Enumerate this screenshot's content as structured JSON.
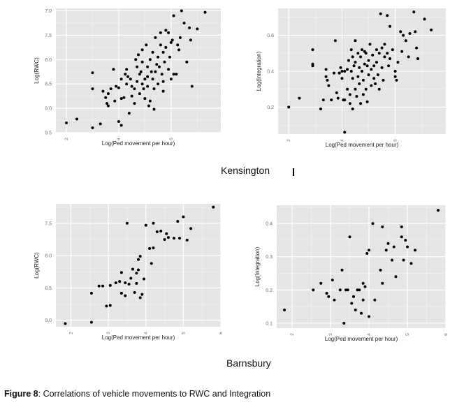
{
  "group_titles": [
    "Kensington",
    "Barnsbury"
  ],
  "caption": {
    "label": "Figure 8",
    "text": ": Correlations of vehicle movements to RWC and Integration"
  },
  "colors": {
    "panel_bg": "#e5e5e5",
    "grid": "#ffffff",
    "point": "#000000",
    "tick_text": "#6e6e6e"
  },
  "chart_data": [
    {
      "type": "scatter",
      "group": "Kensington",
      "xlabel": "Log(Ped movement per hour)",
      "ylabel": "Log(RWC)",
      "xlim": [
        1.6,
        7.9
      ],
      "ylim": [
        6.95,
        9.5
      ],
      "y_reversed": true,
      "xticks": [
        2,
        4,
        6
      ],
      "yticks": [
        7.0,
        7.5,
        8.0,
        8.5,
        9.0,
        9.5
      ],
      "ytick_labels": [
        "7.0",
        "7.5",
        "8.0",
        "8.5",
        "9.0",
        "9.5"
      ],
      "grid": true,
      "points": [
        [
          2.0,
          9.3
        ],
        [
          2.4,
          9.22
        ],
        [
          3.0,
          8.27
        ],
        [
          3.0,
          8.6
        ],
        [
          3.0,
          9.4
        ],
        [
          3.3,
          9.32
        ],
        [
          3.4,
          8.65
        ],
        [
          3.5,
          8.78
        ],
        [
          3.55,
          8.9
        ],
        [
          3.6,
          8.95
        ],
        [
          3.6,
          8.7
        ],
        [
          3.7,
          8.6
        ],
        [
          3.8,
          8.2
        ],
        [
          3.85,
          8.85
        ],
        [
          3.9,
          8.55
        ],
        [
          4.0,
          9.27
        ],
        [
          4.1,
          9.35
        ],
        [
          4.0,
          8.58
        ],
        [
          4.1,
          8.4
        ],
        [
          4.1,
          8.8
        ],
        [
          4.2,
          8.78
        ],
        [
          4.25,
          8.3
        ],
        [
          4.3,
          8.2
        ],
        [
          4.3,
          8.5
        ],
        [
          4.35,
          8.35
        ],
        [
          4.4,
          9.1
        ],
        [
          4.45,
          8.4
        ],
        [
          4.5,
          8.55
        ],
        [
          4.5,
          8.75
        ],
        [
          4.6,
          8.9
        ],
        [
          4.6,
          8.6
        ],
        [
          4.65,
          8.0
        ],
        [
          4.7,
          8.15
        ],
        [
          4.7,
          8.45
        ],
        [
          4.75,
          7.9
        ],
        [
          4.8,
          8.3
        ],
        [
          4.8,
          8.7
        ],
        [
          4.85,
          8.25
        ],
        [
          4.9,
          7.8
        ],
        [
          4.9,
          8.05
        ],
        [
          4.9,
          8.5
        ],
        [
          4.95,
          8.6
        ],
        [
          5.0,
          8.4
        ],
        [
          5.0,
          8.8
        ],
        [
          5.05,
          7.7
        ],
        [
          5.1,
          8.15
        ],
        [
          5.1,
          8.35
        ],
        [
          5.1,
          8.55
        ],
        [
          5.15,
          8.95
        ],
        [
          5.2,
          8.0
        ],
        [
          5.2,
          8.85
        ],
        [
          5.25,
          8.25
        ],
        [
          5.3,
          8.4
        ],
        [
          5.3,
          7.85
        ],
        [
          5.35,
          9.02
        ],
        [
          5.35,
          8.6
        ],
        [
          5.4,
          8.25
        ],
        [
          5.4,
          7.55
        ],
        [
          5.45,
          8.1
        ],
        [
          5.5,
          8.5
        ],
        [
          5.5,
          7.95
        ],
        [
          5.55,
          8.15
        ],
        [
          5.6,
          7.7
        ],
        [
          5.6,
          7.45
        ],
        [
          5.65,
          8.3
        ],
        [
          5.7,
          8.45
        ],
        [
          5.7,
          7.85
        ],
        [
          5.7,
          8.65
        ],
        [
          5.75,
          8.05
        ],
        [
          5.8,
          7.75
        ],
        [
          5.8,
          7.4
        ],
        [
          5.9,
          7.45
        ],
        [
          5.9,
          8.2
        ],
        [
          5.95,
          7.95
        ],
        [
          6.0,
          8.4
        ],
        [
          6.0,
          7.65
        ],
        [
          6.05,
          7.6
        ],
        [
          6.1,
          7.1
        ],
        [
          6.1,
          8.3
        ],
        [
          6.2,
          8.3
        ],
        [
          6.25,
          7.7
        ],
        [
          6.3,
          7.8
        ],
        [
          6.35,
          7.55
        ],
        [
          6.4,
          7.0
        ],
        [
          6.5,
          7.25
        ],
        [
          6.6,
          8.05
        ],
        [
          6.7,
          7.35
        ],
        [
          6.75,
          7.6
        ],
        [
          6.8,
          8.55
        ],
        [
          7.0,
          7.37
        ],
        [
          7.3,
          7.03
        ]
      ]
    },
    {
      "type": "scatter",
      "group": "Kensington",
      "xlabel": "Log(Ped movement per hour)",
      "ylabel": "Log(Integration)",
      "xlim": [
        1.6,
        7.9
      ],
      "ylim": [
        0.05,
        0.75
      ],
      "y_reversed": false,
      "xticks": [
        2,
        4,
        6
      ],
      "yticks": [
        0.2,
        0.4,
        0.6
      ],
      "ytick_labels": [
        "0.2",
        "0.4",
        "0.6"
      ],
      "grid": true,
      "points": [
        [
          2.0,
          0.2
        ],
        [
          2.4,
          0.25
        ],
        [
          2.9,
          0.52
        ],
        [
          2.9,
          0.44
        ],
        [
          2.9,
          0.43
        ],
        [
          3.2,
          0.19
        ],
        [
          3.3,
          0.24
        ],
        [
          3.4,
          0.41
        ],
        [
          3.4,
          0.37
        ],
        [
          3.45,
          0.35
        ],
        [
          3.5,
          0.32
        ],
        [
          3.6,
          0.24
        ],
        [
          3.7,
          0.39
        ],
        [
          3.75,
          0.57
        ],
        [
          3.8,
          0.28
        ],
        [
          3.85,
          0.25
        ],
        [
          3.9,
          0.39
        ],
        [
          3.9,
          0.39
        ],
        [
          3.95,
          0.42
        ],
        [
          4.0,
          0.4
        ],
        [
          4.0,
          0.36
        ],
        [
          4.05,
          0.24
        ],
        [
          4.1,
          0.24
        ],
        [
          4.1,
          0.4
        ],
        [
          4.1,
          0.06
        ],
        [
          4.2,
          0.3
        ],
        [
          4.2,
          0.41
        ],
        [
          4.25,
          0.46
        ],
        [
          4.3,
          0.27
        ],
        [
          4.3,
          0.22
        ],
        [
          4.35,
          0.52
        ],
        [
          4.35,
          0.4
        ],
        [
          4.4,
          0.48
        ],
        [
          4.4,
          0.36
        ],
        [
          4.4,
          0.19
        ],
        [
          4.45,
          0.43
        ],
        [
          4.5,
          0.57
        ],
        [
          4.5,
          0.45
        ],
        [
          4.5,
          0.3
        ],
        [
          4.55,
          0.26
        ],
        [
          4.6,
          0.37
        ],
        [
          4.6,
          0.5
        ],
        [
          4.65,
          0.42
        ],
        [
          4.65,
          0.33
        ],
        [
          4.7,
          0.48
        ],
        [
          4.7,
          0.22
        ],
        [
          4.75,
          0.52
        ],
        [
          4.75,
          0.4
        ],
        [
          4.8,
          0.35
        ],
        [
          4.8,
          0.27
        ],
        [
          4.85,
          0.44
        ],
        [
          4.85,
          0.51
        ],
        [
          4.9,
          0.5
        ],
        [
          4.9,
          0.3
        ],
        [
          4.95,
          0.43
        ],
        [
          4.95,
          0.23
        ],
        [
          5.0,
          0.46
        ],
        [
          5.0,
          0.38
        ],
        [
          5.05,
          0.55
        ],
        [
          5.1,
          0.41
        ],
        [
          5.1,
          0.32
        ],
        [
          5.15,
          0.49
        ],
        [
          5.2,
          0.36
        ],
        [
          5.2,
          0.43
        ],
        [
          5.25,
          0.33
        ],
        [
          5.3,
          0.52
        ],
        [
          5.3,
          0.45
        ],
        [
          5.35,
          0.38
        ],
        [
          5.4,
          0.3
        ],
        [
          5.4,
          0.5
        ],
        [
          5.45,
          0.72
        ],
        [
          5.5,
          0.53
        ],
        [
          5.5,
          0.42
        ],
        [
          5.55,
          0.35
        ],
        [
          5.6,
          0.48
        ],
        [
          5.6,
          0.55
        ],
        [
          5.7,
          0.71
        ],
        [
          5.7,
          0.5
        ],
        [
          5.75,
          0.43
        ],
        [
          5.8,
          0.65
        ],
        [
          5.8,
          0.47
        ],
        [
          5.9,
          0.52
        ],
        [
          6.0,
          0.4
        ],
        [
          6.0,
          0.37
        ],
        [
          6.05,
          0.35
        ],
        [
          6.1,
          0.45
        ],
        [
          6.2,
          0.62
        ],
        [
          6.25,
          0.51
        ],
        [
          6.3,
          0.6
        ],
        [
          6.4,
          0.57
        ],
        [
          6.5,
          0.48
        ],
        [
          6.55,
          0.61
        ],
        [
          6.7,
          0.73
        ],
        [
          6.75,
          0.62
        ],
        [
          6.8,
          0.53
        ],
        [
          6.85,
          0.47
        ],
        [
          7.1,
          0.69
        ],
        [
          7.35,
          0.63
        ]
      ]
    },
    {
      "type": "scatter",
      "group": "Barnsbury",
      "xlabel": "Log(Ped movement per hour)",
      "ylabel": "Log(RWC)",
      "xlim": [
        1.6,
        6.0
      ],
      "ylim": [
        7.2,
        9.1
      ],
      "y_reversed": true,
      "xticks": [
        2,
        3,
        4,
        5,
        6
      ],
      "yticks": [
        7.5,
        8.0,
        8.5,
        9.0
      ],
      "ytick_labels": [
        "7.5",
        "8.0",
        "8.5",
        "9.0"
      ],
      "grid": true,
      "points": [
        [
          1.85,
          9.05
        ],
        [
          2.55,
          9.03
        ],
        [
          2.55,
          8.58
        ],
        [
          2.75,
          8.47
        ],
        [
          2.85,
          8.47
        ],
        [
          2.95,
          8.78
        ],
        [
          3.05,
          8.46
        ],
        [
          3.05,
          8.77
        ],
        [
          3.2,
          8.42
        ],
        [
          3.3,
          8.4
        ],
        [
          3.35,
          8.26
        ],
        [
          3.35,
          8.58
        ],
        [
          3.45,
          8.62
        ],
        [
          3.45,
          8.42
        ],
        [
          3.5,
          7.5
        ],
        [
          3.55,
          8.44
        ],
        [
          3.6,
          8.35
        ],
        [
          3.65,
          8.21
        ],
        [
          3.7,
          8.57
        ],
        [
          3.75,
          8.27
        ],
        [
          3.75,
          8.43
        ],
        [
          3.8,
          8.06
        ],
        [
          3.8,
          8.22
        ],
        [
          3.85,
          8.01
        ],
        [
          3.85,
          8.65
        ],
        [
          3.9,
          8.6
        ],
        [
          3.95,
          8.36
        ],
        [
          4.0,
          7.53
        ],
        [
          4.1,
          7.89
        ],
        [
          4.15,
          8.12
        ],
        [
          4.2,
          7.5
        ],
        [
          4.2,
          7.88
        ],
        [
          4.3,
          7.63
        ],
        [
          4.4,
          7.62
        ],
        [
          4.5,
          7.75
        ],
        [
          4.55,
          7.66
        ],
        [
          4.6,
          7.72
        ],
        [
          4.75,
          7.73
        ],
        [
          4.85,
          7.47
        ],
        [
          4.9,
          7.73
        ],
        [
          5.0,
          7.4
        ],
        [
          5.1,
          7.76
        ],
        [
          5.2,
          7.58
        ],
        [
          5.8,
          7.25
        ]
      ]
    },
    {
      "type": "scatter",
      "group": "Barnsbury",
      "xlabel": "Log(Ped movement per hour)",
      "ylabel": "Log(Integration)",
      "xlim": [
        1.6,
        6.0
      ],
      "ylim": [
        0.085,
        0.455
      ],
      "y_reversed": false,
      "xticks": [
        2,
        3,
        4,
        5,
        6
      ],
      "yticks": [
        0.1,
        0.2,
        0.3,
        0.4
      ],
      "ytick_labels": [
        "0.1",
        "0.2",
        "0.3",
        "0.4"
      ],
      "grid": true,
      "points": [
        [
          1.8,
          0.14
        ],
        [
          2.55,
          0.2
        ],
        [
          2.75,
          0.22
        ],
        [
          2.9,
          0.19
        ],
        [
          2.95,
          0.18
        ],
        [
          3.05,
          0.23
        ],
        [
          3.1,
          0.17
        ],
        [
          3.25,
          0.2
        ],
        [
          3.3,
          0.26
        ],
        [
          3.35,
          0.1
        ],
        [
          3.4,
          0.2
        ],
        [
          3.45,
          0.2
        ],
        [
          3.5,
          0.36
        ],
        [
          3.55,
          0.16
        ],
        [
          3.6,
          0.18
        ],
        [
          3.65,
          0.14
        ],
        [
          3.7,
          0.2
        ],
        [
          3.75,
          0.2
        ],
        [
          3.8,
          0.13
        ],
        [
          3.85,
          0.22
        ],
        [
          3.85,
          0.17
        ],
        [
          3.9,
          0.21
        ],
        [
          3.95,
          0.31
        ],
        [
          4.0,
          0.32
        ],
        [
          4.0,
          0.12
        ],
        [
          4.1,
          0.4
        ],
        [
          4.15,
          0.17
        ],
        [
          4.3,
          0.26
        ],
        [
          4.35,
          0.22
        ],
        [
          4.35,
          0.39
        ],
        [
          4.45,
          0.32
        ],
        [
          4.5,
          0.34
        ],
        [
          4.6,
          0.29
        ],
        [
          4.65,
          0.33
        ],
        [
          4.7,
          0.24
        ],
        [
          4.85,
          0.39
        ],
        [
          4.85,
          0.36
        ],
        [
          4.9,
          0.29
        ],
        [
          4.95,
          0.35
        ],
        [
          5.0,
          0.33
        ],
        [
          5.1,
          0.28
        ],
        [
          5.2,
          0.32
        ],
        [
          5.8,
          0.44
        ]
      ]
    }
  ]
}
